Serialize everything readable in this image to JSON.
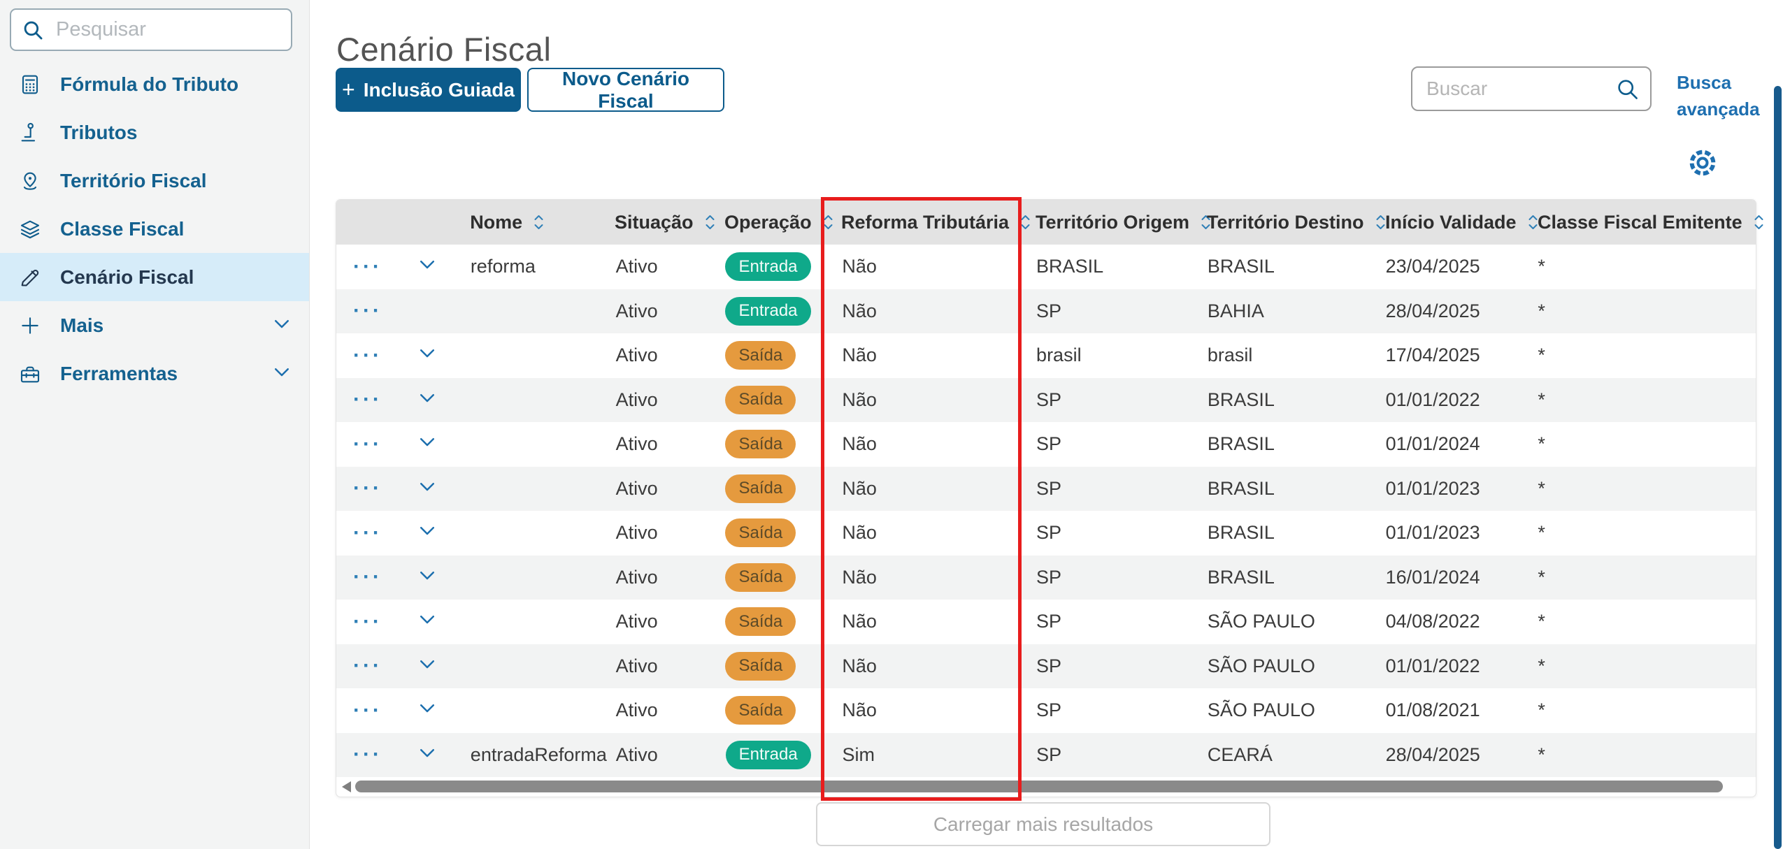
{
  "sidebar": {
    "search_placeholder": "Pesquisar",
    "items": [
      {
        "name": "formula-do-tributo",
        "label": "Fórmula do Tributo",
        "icon": "calculator-icon",
        "active": false,
        "expandable": false
      },
      {
        "name": "tributos",
        "label": "Tributos",
        "icon": "tribute-pole-icon",
        "active": false,
        "expandable": false
      },
      {
        "name": "territorio-fiscal",
        "label": "Território Fiscal",
        "icon": "map-pin-icon",
        "active": false,
        "expandable": false
      },
      {
        "name": "classe-fiscal",
        "label": "Classe Fiscal",
        "icon": "layers-icon",
        "active": false,
        "expandable": false
      },
      {
        "name": "cenario-fiscal",
        "label": "Cenário Fiscal",
        "icon": "pencil-icon",
        "active": true,
        "expandable": false
      },
      {
        "name": "mais",
        "label": "Mais",
        "icon": "plus-icon",
        "active": false,
        "expandable": true
      },
      {
        "name": "ferramentas",
        "label": "Ferramentas",
        "icon": "toolbox-icon",
        "active": false,
        "expandable": true
      }
    ]
  },
  "header": {
    "title": "Cenário Fiscal",
    "primary_button_plus": "+",
    "primary_button": "Inclusão Guiada",
    "secondary_button": "Novo Cenário Fiscal",
    "search_placeholder": "Buscar",
    "advanced_search": "Busca avançada"
  },
  "table": {
    "columns": [
      {
        "key": "actions",
        "label": "",
        "sortable": false
      },
      {
        "key": "expand",
        "label": "",
        "sortable": false
      },
      {
        "key": "nome",
        "label": "Nome",
        "sortable": true
      },
      {
        "key": "situacao",
        "label": "Situação",
        "sortable": true
      },
      {
        "key": "operacao",
        "label": "Operação",
        "sortable": true
      },
      {
        "key": "reforma",
        "label": "Reforma Tributária",
        "sortable": true,
        "highlighted": true
      },
      {
        "key": "origem",
        "label": "Território Origem",
        "sortable": true
      },
      {
        "key": "destino",
        "label": "Território Destino",
        "sortable": true
      },
      {
        "key": "inicio",
        "label": "Início Validade",
        "sortable": true
      },
      {
        "key": "classe",
        "label": "Classe Fiscal Emitente",
        "sortable": true
      }
    ],
    "rows": [
      {
        "expandable": true,
        "nome": "reforma",
        "situacao": "Ativo",
        "operacao": "Entrada",
        "reforma": "Não",
        "origem": "BRASIL",
        "destino": "BRASIL",
        "inicio": "23/04/2025",
        "classe": "*"
      },
      {
        "expandable": false,
        "nome": "",
        "situacao": "Ativo",
        "operacao": "Entrada",
        "reforma": "Não",
        "origem": "SP",
        "destino": "BAHIA",
        "inicio": "28/04/2025",
        "classe": "*"
      },
      {
        "expandable": true,
        "nome": "",
        "situacao": "Ativo",
        "operacao": "Saída",
        "reforma": "Não",
        "origem": "brasil",
        "destino": "brasil",
        "inicio": "17/04/2025",
        "classe": "*"
      },
      {
        "expandable": true,
        "nome": "",
        "situacao": "Ativo",
        "operacao": "Saída",
        "reforma": "Não",
        "origem": "SP",
        "destino": "BRASIL",
        "inicio": "01/01/2022",
        "classe": "*"
      },
      {
        "expandable": true,
        "nome": "",
        "situacao": "Ativo",
        "operacao": "Saída",
        "reforma": "Não",
        "origem": "SP",
        "destino": "BRASIL",
        "inicio": "01/01/2024",
        "classe": "*"
      },
      {
        "expandable": true,
        "nome": "",
        "situacao": "Ativo",
        "operacao": "Saída",
        "reforma": "Não",
        "origem": "SP",
        "destino": "BRASIL",
        "inicio": "01/01/2023",
        "classe": "*"
      },
      {
        "expandable": true,
        "nome": "",
        "situacao": "Ativo",
        "operacao": "Saída",
        "reforma": "Não",
        "origem": "SP",
        "destino": "BRASIL",
        "inicio": "01/01/2023",
        "classe": "*"
      },
      {
        "expandable": true,
        "nome": "",
        "situacao": "Ativo",
        "operacao": "Saída",
        "reforma": "Não",
        "origem": "SP",
        "destino": "BRASIL",
        "inicio": "16/01/2024",
        "classe": "*"
      },
      {
        "expandable": true,
        "nome": "",
        "situacao": "Ativo",
        "operacao": "Saída",
        "reforma": "Não",
        "origem": "SP",
        "destino": "SÃO PAULO",
        "inicio": "04/08/2022",
        "classe": "*"
      },
      {
        "expandable": true,
        "nome": "",
        "situacao": "Ativo",
        "operacao": "Saída",
        "reforma": "Não",
        "origem": "SP",
        "destino": "SÃO PAULO",
        "inicio": "01/01/2022",
        "classe": "*"
      },
      {
        "expandable": true,
        "nome": "",
        "situacao": "Ativo",
        "operacao": "Saída",
        "reforma": "Não",
        "origem": "SP",
        "destino": "SÃO PAULO",
        "inicio": "01/08/2021",
        "classe": "*"
      },
      {
        "expandable": true,
        "nome": "entradaReforma",
        "situacao": "Ativo",
        "operacao": "Entrada",
        "reforma": "Sim",
        "origem": "SP",
        "destino": "CEARÁ",
        "inicio": "28/04/2025",
        "classe": "*"
      }
    ],
    "badges": {
      "entrada_bg": "#0fa98a",
      "saida_bg": "#e59a3e"
    }
  },
  "footer": {
    "load_more": "Carregar mais resultados"
  },
  "annotation": {
    "highlighted_column": "Reforma Tributária",
    "color": "#e81d1d"
  },
  "colors": {
    "accent": "#0c5b8b",
    "link": "#1e6fb0",
    "active_item_bg": "#d6ecf9",
    "table_header_bg": "#e3e3e3",
    "row_stripe": "#f2f3f3",
    "scrollbar_blue": "#175a8c"
  }
}
